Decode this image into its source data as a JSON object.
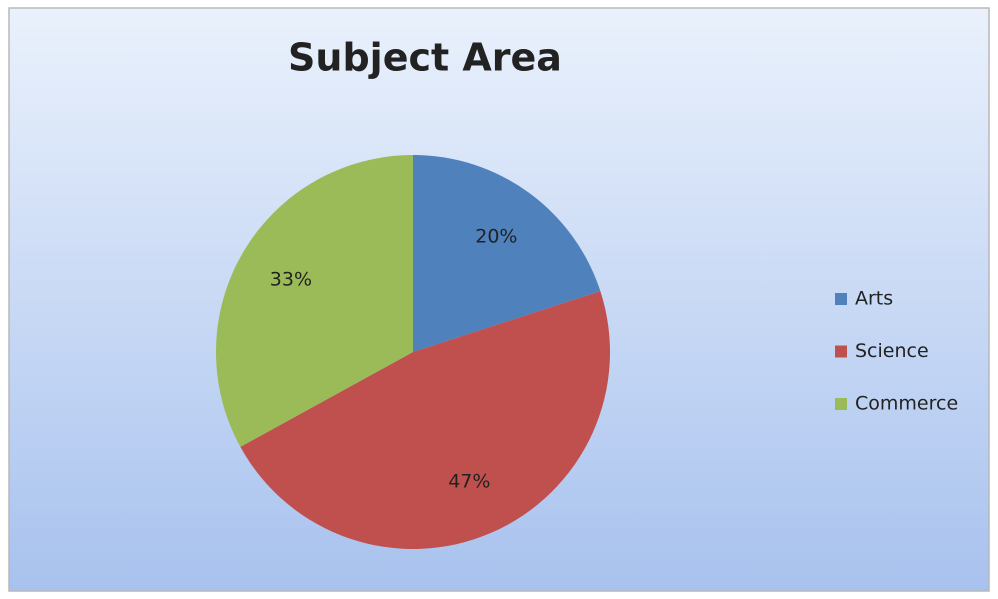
{
  "chart_data": {
    "type": "pie",
    "title": "Subject Area",
    "categories": [
      "Arts",
      "Science",
      "Commerce"
    ],
    "values": [
      20,
      47,
      33
    ],
    "value_labels": [
      "20%",
      "47%",
      "33%"
    ],
    "colors": [
      "#4f81bd",
      "#c0504d",
      "#9bbb59"
    ],
    "legend": "right"
  }
}
